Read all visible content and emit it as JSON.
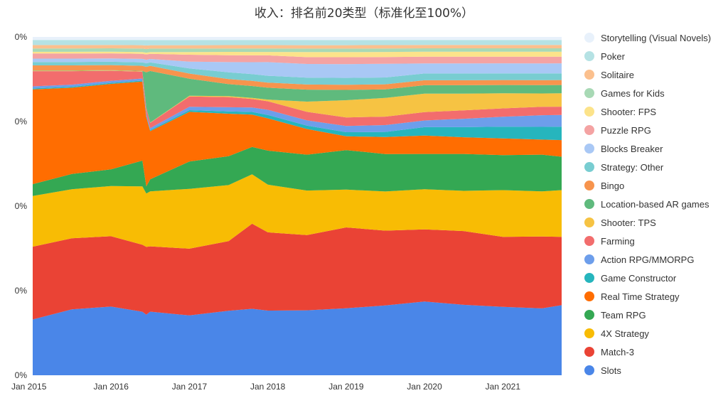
{
  "chart_data": {
    "type": "area",
    "stacked": true,
    "normalized": true,
    "title": "收入：排名前20类型（标准化至100%）",
    "y_ticks": [
      "0%",
      "0%",
      "0%",
      "0%",
      "0%"
    ],
    "ylim": [
      0,
      100
    ],
    "x_ticks": [
      "Jan 2015",
      "Jan 2016",
      "Jan 2017",
      "Jan 2018",
      "Jan 2019",
      "Jan 2020",
      "Jan 2021"
    ],
    "x": [
      2015.0,
      2015.5,
      2016.0,
      2016.4,
      2016.45,
      2016.5,
      2017.0,
      2017.5,
      2017.8,
      2018.0,
      2018.5,
      2019.0,
      2019.5,
      2020.0,
      2020.5,
      2021.0,
      2021.5,
      2021.75
    ],
    "legend_position": "right",
    "series": [
      {
        "name": "Slots",
        "color": "#4a86e8",
        "values": [
          16.5,
          19.5,
          20.5,
          18.5,
          17.0,
          18.5,
          17.5,
          19.0,
          19.5,
          19.0,
          19.0,
          19.5,
          20.5,
          22.0,
          21.0,
          20.5,
          20.0,
          21.0
        ]
      },
      {
        "name": "Match-3",
        "color": "#ea4335",
        "values": [
          21.5,
          21.0,
          21.0,
          19.5,
          19.0,
          19.0,
          19.5,
          20.5,
          25.0,
          23.0,
          22.0,
          23.5,
          22.0,
          21.5,
          22.0,
          21.0,
          21.5,
          20.5
        ]
      },
      {
        "name": "4X Strategy",
        "color": "#f8bc04",
        "values": [
          15.0,
          14.5,
          15.0,
          17.0,
          15.0,
          16.0,
          17.5,
          16.5,
          14.5,
          14.0,
          13.0,
          11.0,
          11.5,
          12.0,
          12.0,
          14.0,
          13.5,
          14.0
        ]
      },
      {
        "name": "Team RPG",
        "color": "#34a853",
        "values": [
          3.5,
          4.5,
          5.0,
          7.5,
          2.0,
          3.5,
          8.0,
          8.5,
          8.0,
          10.0,
          10.5,
          11.5,
          11.0,
          10.5,
          11.0,
          10.5,
          11.0,
          10.0
        ]
      },
      {
        "name": "Real Time Strategy",
        "color": "#ff6d01",
        "values": [
          28.0,
          25.5,
          25.5,
          23.0,
          19.5,
          14.0,
          14.5,
          12.5,
          9.5,
          9.5,
          7.5,
          4.0,
          5.0,
          5.5,
          5.0,
          5.0,
          4.5,
          5.0
        ]
      },
      {
        "name": "Game Constructor",
        "color": "#26b5bd",
        "values": [
          0.3,
          0.3,
          0.3,
          0.3,
          0.3,
          0.3,
          0.5,
          0.7,
          0.8,
          1.0,
          1.0,
          1.2,
          1.5,
          2.5,
          3.0,
          3.5,
          3.8,
          4.0
        ]
      },
      {
        "name": "Action RPG/MMORPG",
        "color": "#6d9eeb",
        "values": [
          0.6,
          0.6,
          0.6,
          0.6,
          0.6,
          0.6,
          1.0,
          1.2,
          1.3,
          1.5,
          1.5,
          1.8,
          2.0,
          2.0,
          2.5,
          3.0,
          3.5,
          3.5
        ]
      },
      {
        "name": "Farming",
        "color": "#f26d6d",
        "values": [
          4.5,
          4.0,
          3.0,
          2.0,
          1.5,
          1.5,
          3.0,
          3.0,
          2.5,
          2.5,
          2.5,
          2.5,
          2.5,
          2.5,
          2.5,
          2.5,
          2.5,
          2.5
        ]
      },
      {
        "name": "Shooter: TPS",
        "color": "#f6c343",
        "values": [
          0.1,
          0.1,
          0.1,
          0.1,
          0.1,
          0.1,
          0.2,
          0.3,
          0.3,
          0.5,
          3.0,
          5.0,
          5.5,
          5.5,
          5.0,
          4.5,
          4.0,
          4.0
        ]
      },
      {
        "name": "Location-based AR games",
        "color": "#5fba7d",
        "values": [
          0.1,
          0.1,
          0.1,
          0.1,
          10.0,
          15.0,
          5.0,
          3.5,
          3.5,
          3.5,
          3.5,
          3.0,
          2.5,
          2.5,
          2.5,
          2.5,
          2.5,
          2.5
        ]
      },
      {
        "name": "Bingo",
        "color": "#f7944d",
        "values": [
          1.5,
          1.5,
          1.5,
          1.5,
          1.5,
          1.5,
          1.5,
          1.5,
          1.5,
          1.5,
          1.5,
          1.5,
          1.5,
          1.5,
          1.5,
          1.5,
          1.5,
          1.5
        ]
      },
      {
        "name": "Strategy: Other",
        "color": "#78cdd1",
        "values": [
          1.0,
          1.0,
          1.0,
          1.0,
          1.0,
          1.0,
          1.5,
          2.0,
          2.0,
          2.0,
          2.0,
          2.0,
          2.0,
          2.0,
          2.0,
          2.0,
          2.0,
          2.0
        ]
      },
      {
        "name": "Blocks Breaker",
        "color": "#a9c8f5",
        "values": [
          1.0,
          1.0,
          1.0,
          1.0,
          1.0,
          1.0,
          2.0,
          3.0,
          3.5,
          4.0,
          4.0,
          4.0,
          4.0,
          3.0,
          3.0,
          3.0,
          3.0,
          3.0
        ]
      },
      {
        "name": "Puzzle RPG",
        "color": "#f4a3a3",
        "values": [
          1.5,
          1.5,
          1.5,
          1.5,
          1.5,
          1.5,
          2.0,
          2.0,
          2.0,
          2.0,
          2.0,
          2.0,
          2.0,
          2.0,
          2.0,
          2.0,
          2.0,
          2.0
        ]
      },
      {
        "name": "Shooter: FPS",
        "color": "#fce38a",
        "values": [
          0.5,
          0.5,
          0.5,
          0.5,
          0.5,
          0.5,
          0.8,
          1.0,
          1.0,
          1.0,
          1.5,
          1.5,
          1.5,
          1.5,
          1.5,
          1.5,
          1.5,
          1.5
        ]
      },
      {
        "name": "Games for Kids",
        "color": "#a8d9b5",
        "values": [
          1.0,
          1.0,
          1.0,
          1.0,
          1.0,
          1.0,
          1.0,
          1.0,
          1.0,
          1.0,
          1.0,
          1.0,
          1.0,
          1.0,
          1.0,
          1.0,
          1.0,
          1.0
        ]
      },
      {
        "name": "Solitaire",
        "color": "#fbc08e",
        "values": [
          1.0,
          1.0,
          1.0,
          1.0,
          1.0,
          1.0,
          1.0,
          1.0,
          1.0,
          1.0,
          1.0,
          1.0,
          1.0,
          1.0,
          1.0,
          1.0,
          1.0,
          1.0
        ]
      },
      {
        "name": "Poker",
        "color": "#b5e2e4",
        "values": [
          1.5,
          1.5,
          1.5,
          1.5,
          1.5,
          1.5,
          1.5,
          1.5,
          1.5,
          1.5,
          1.5,
          1.5,
          1.5,
          1.5,
          1.5,
          1.5,
          1.5,
          1.5
        ]
      },
      {
        "name": "Storytelling (Visual Novels)",
        "color": "#e8f1fb",
        "values": [
          0.9,
          0.9,
          0.9,
          0.9,
          0.9,
          0.9,
          0.9,
          0.9,
          0.9,
          0.9,
          0.9,
          0.9,
          0.9,
          0.9,
          0.9,
          0.9,
          0.9,
          0.9
        ]
      }
    ]
  }
}
